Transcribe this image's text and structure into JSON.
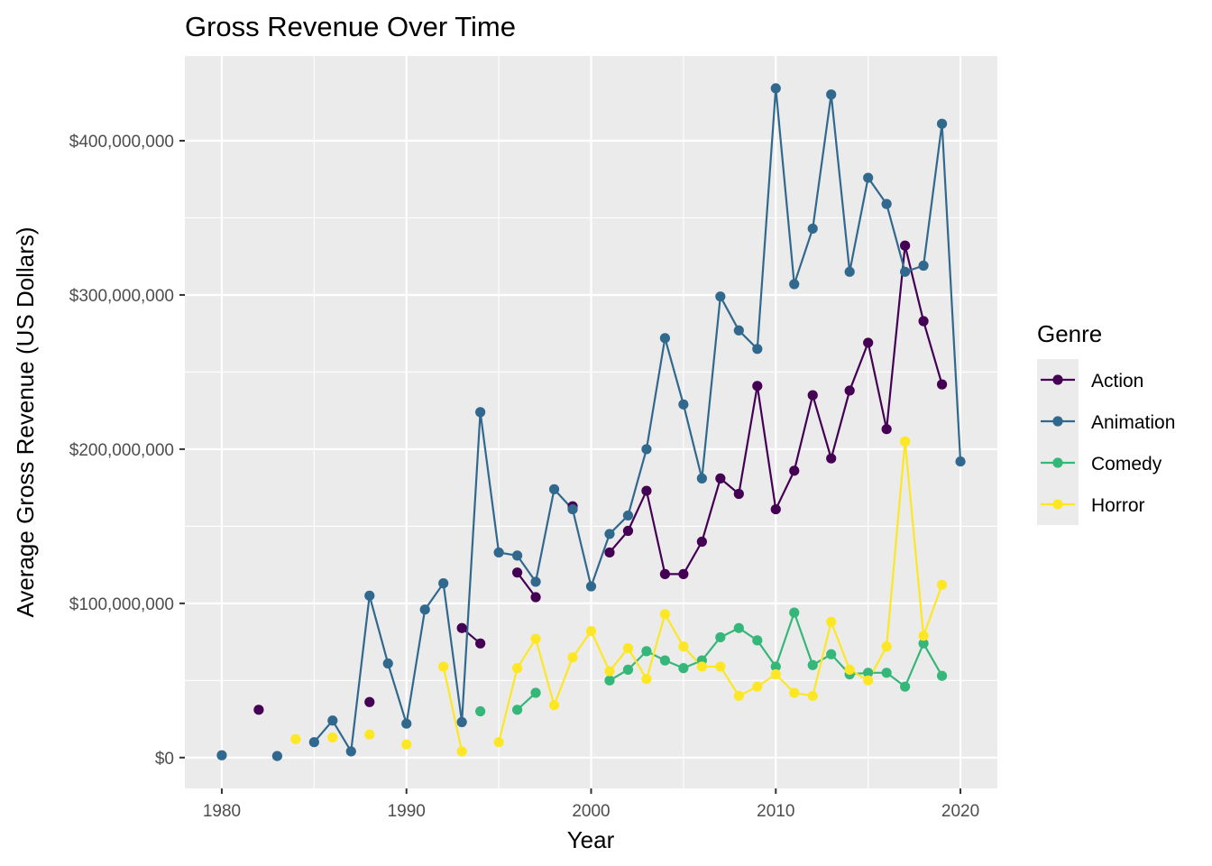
{
  "chart_data": {
    "type": "line",
    "title": "Gross Revenue Over Time",
    "xlabel": "Year",
    "ylabel": "Average Gross Revenue (US Dollars)",
    "xlim": [
      1978,
      2022
    ],
    "ylim": [
      -20000000,
      455000000
    ],
    "x_ticks": [
      1980,
      1990,
      2000,
      2010,
      2020
    ],
    "x_tick_labels": [
      "1980",
      "1990",
      "2000",
      "2010",
      "2020"
    ],
    "y_ticks": [
      0,
      100000000,
      200000000,
      300000000,
      400000000
    ],
    "y_tick_labels": [
      "$0",
      "$100,000,000",
      "$200,000,000",
      "$300,000,000",
      "$400,000,000"
    ],
    "grid": true,
    "legend": {
      "title": "Genre",
      "position": "right"
    },
    "series": [
      {
        "name": "Action",
        "color": "#440154",
        "points": [
          [
            1982,
            31000000
          ],
          [
            1988,
            36000000
          ],
          [
            1993,
            84000000
          ],
          [
            1994,
            74000000
          ],
          [
            1996,
            120000000
          ],
          [
            1997,
            104000000
          ],
          [
            1999,
            163000000
          ],
          [
            2001,
            133000000
          ],
          [
            2002,
            147000000
          ],
          [
            2003,
            173000000
          ],
          [
            2004,
            119000000
          ],
          [
            2005,
            119000000
          ],
          [
            2006,
            140000000
          ],
          [
            2007,
            181000000
          ],
          [
            2008,
            171000000
          ],
          [
            2009,
            241000000
          ],
          [
            2010,
            161000000
          ],
          [
            2011,
            186000000
          ],
          [
            2012,
            235000000
          ],
          [
            2013,
            194000000
          ],
          [
            2014,
            238000000
          ],
          [
            2015,
            269000000
          ],
          [
            2016,
            213000000
          ],
          [
            2017,
            332000000
          ],
          [
            2018,
            283000000
          ],
          [
            2019,
            242000000
          ]
        ]
      },
      {
        "name": "Animation",
        "color": "#31688E",
        "points": [
          [
            1980,
            1500000
          ],
          [
            1983,
            1000000
          ],
          [
            1985,
            10000000
          ],
          [
            1986,
            24000000
          ],
          [
            1987,
            4000000
          ],
          [
            1988,
            105000000
          ],
          [
            1989,
            61000000
          ],
          [
            1990,
            22000000
          ],
          [
            1991,
            96000000
          ],
          [
            1992,
            113000000
          ],
          [
            1993,
            23000000
          ],
          [
            1994,
            224000000
          ],
          [
            1995,
            133000000
          ],
          [
            1996,
            131000000
          ],
          [
            1997,
            114000000
          ],
          [
            1998,
            174000000
          ],
          [
            1999,
            161000000
          ],
          [
            2000,
            111000000
          ],
          [
            2001,
            145000000
          ],
          [
            2002,
            157000000
          ],
          [
            2003,
            200000000
          ],
          [
            2004,
            272000000
          ],
          [
            2005,
            229000000
          ],
          [
            2006,
            181000000
          ],
          [
            2007,
            299000000
          ],
          [
            2008,
            277000000
          ],
          [
            2009,
            265000000
          ],
          [
            2010,
            434000000
          ],
          [
            2011,
            307000000
          ],
          [
            2012,
            343000000
          ],
          [
            2013,
            430000000
          ],
          [
            2014,
            315000000
          ],
          [
            2015,
            376000000
          ],
          [
            2016,
            359000000
          ],
          [
            2017,
            315000000
          ],
          [
            2018,
            319000000
          ],
          [
            2019,
            411000000
          ],
          [
            2020,
            192000000
          ]
        ]
      },
      {
        "name": "Comedy",
        "color": "#35B779",
        "points": [
          [
            1994,
            30000000
          ],
          [
            1996,
            31000000
          ],
          [
            1997,
            42000000
          ],
          [
            2001,
            50000000
          ],
          [
            2002,
            57000000
          ],
          [
            2003,
            69000000
          ],
          [
            2004,
            63000000
          ],
          [
            2005,
            58000000
          ],
          [
            2006,
            63000000
          ],
          [
            2007,
            78000000
          ],
          [
            2008,
            84000000
          ],
          [
            2009,
            76000000
          ],
          [
            2010,
            59000000
          ],
          [
            2011,
            94000000
          ],
          [
            2012,
            60000000
          ],
          [
            2013,
            67000000
          ],
          [
            2014,
            54000000
          ],
          [
            2015,
            55000000
          ],
          [
            2016,
            55000000
          ],
          [
            2017,
            46000000
          ],
          [
            2018,
            74000000
          ],
          [
            2019,
            53000000
          ]
        ]
      },
      {
        "name": "Horror",
        "color": "#FDE725",
        "points": [
          [
            1984,
            12000000
          ],
          [
            1986,
            13000000
          ],
          [
            1988,
            15000000
          ],
          [
            1990,
            8500000
          ],
          [
            1992,
            59000000
          ],
          [
            1993,
            4000000
          ],
          [
            1995,
            10000000
          ],
          [
            1996,
            58000000
          ],
          [
            1997,
            77000000
          ],
          [
            1998,
            34000000
          ],
          [
            1999,
            65000000
          ],
          [
            2000,
            82000000
          ],
          [
            2001,
            56000000
          ],
          [
            2002,
            71000000
          ],
          [
            2003,
            51000000
          ],
          [
            2004,
            93000000
          ],
          [
            2005,
            72000000
          ],
          [
            2006,
            59000000
          ],
          [
            2007,
            59000000
          ],
          [
            2008,
            40000000
          ],
          [
            2009,
            46000000
          ],
          [
            2010,
            54000000
          ],
          [
            2011,
            42000000
          ],
          [
            2012,
            40000000
          ],
          [
            2013,
            88000000
          ],
          [
            2014,
            57000000
          ],
          [
            2015,
            50000000
          ],
          [
            2016,
            72000000
          ],
          [
            2017,
            205000000
          ],
          [
            2018,
            79000000
          ],
          [
            2019,
            112000000
          ]
        ]
      }
    ]
  }
}
